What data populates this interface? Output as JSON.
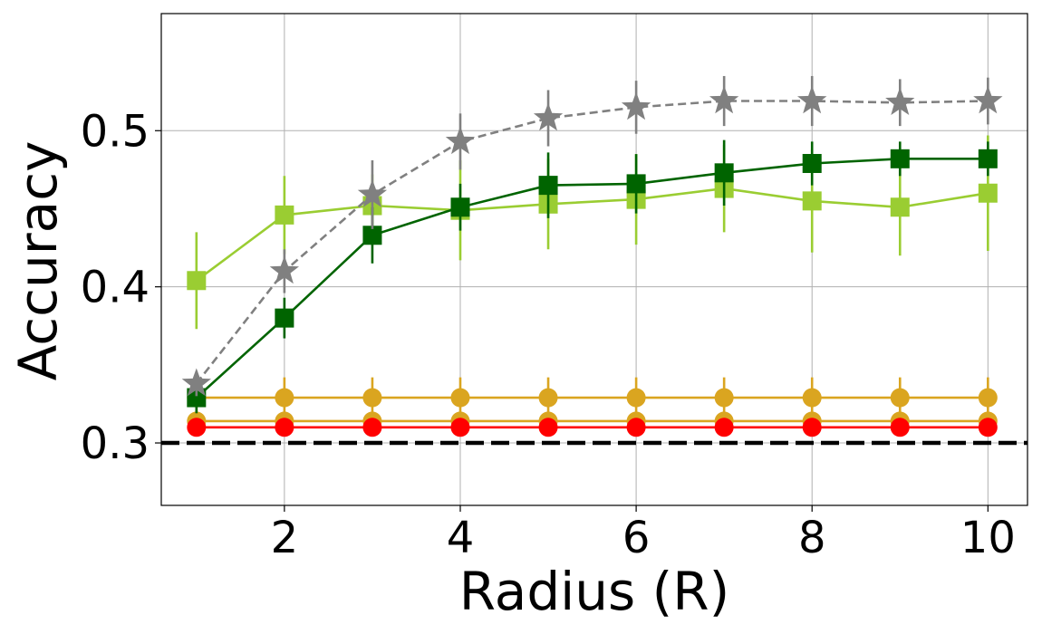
{
  "chart_data": {
    "type": "line",
    "xlabel": "Radius (R)",
    "ylabel": "Accuracy",
    "xlim": [
      0.6,
      10.45
    ],
    "ylim": [
      0.26,
      0.575
    ],
    "xticks": [
      2,
      4,
      6,
      8,
      10
    ],
    "xtick_labels": [
      "2",
      "4",
      "6",
      "8",
      "10"
    ],
    "yticks": [
      0.3,
      0.4,
      0.5
    ],
    "ytick_labels": [
      "0.3",
      "0.4",
      "0.5"
    ],
    "grid": true,
    "x": [
      1,
      2,
      3,
      4,
      5,
      6,
      7,
      8,
      9,
      10
    ],
    "baseline": {
      "value": 0.3,
      "color": "#000000",
      "style": "dashed"
    },
    "series": [
      {
        "color": "#daa520",
        "marker": "circle",
        "style": "solid",
        "values": [
          0.314,
          0.314,
          0.314,
          0.314,
          0.314,
          0.314,
          0.314,
          0.314,
          0.314,
          0.314
        ],
        "errors": [
          0,
          0,
          0,
          0,
          0,
          0,
          0,
          0,
          0,
          0
        ]
      },
      {
        "color": "#daa520",
        "marker": "circle",
        "style": "solid",
        "values": [
          0.329,
          0.329,
          0.329,
          0.329,
          0.329,
          0.329,
          0.329,
          0.329,
          0.329,
          0.329
        ],
        "errors": [
          0.013,
          0.013,
          0.013,
          0.013,
          0.013,
          0.013,
          0.013,
          0.013,
          0.013,
          0.013
        ]
      },
      {
        "color": "#ff0000",
        "marker": "circle",
        "style": "solid",
        "values": [
          0.31,
          0.31,
          0.31,
          0.31,
          0.31,
          0.31,
          0.31,
          0.31,
          0.31,
          0.31
        ],
        "errors": [
          0,
          0,
          0,
          0,
          0,
          0,
          0,
          0,
          0,
          0
        ]
      },
      {
        "color": "#9acd32",
        "marker": "square",
        "style": "solid",
        "values": [
          0.404,
          0.446,
          0.452,
          0.449,
          0.453,
          0.456,
          0.463,
          0.455,
          0.451,
          0.46
        ],
        "errors": [
          0.031,
          0.025,
          0.02,
          0.032,
          0.029,
          0.029,
          0.028,
          0.033,
          0.031,
          0.037
        ]
      },
      {
        "color": "#006400",
        "marker": "square",
        "style": "solid",
        "values": [
          0.329,
          0.38,
          0.433,
          0.451,
          0.465,
          0.466,
          0.473,
          0.479,
          0.482,
          0.482
        ],
        "errors": [
          0.01,
          0.013,
          0.018,
          0.015,
          0.021,
          0.019,
          0.021,
          0.014,
          0.011,
          0.011
        ]
      },
      {
        "color": "#808080",
        "marker": "star",
        "style": "dashed",
        "values": [
          0.338,
          0.41,
          0.459,
          0.493,
          0.508,
          0.515,
          0.519,
          0.519,
          0.518,
          0.519
        ],
        "errors": [
          0.008,
          0.014,
          0.022,
          0.018,
          0.018,
          0.017,
          0.016,
          0.016,
          0.015,
          0.015
        ]
      }
    ]
  }
}
